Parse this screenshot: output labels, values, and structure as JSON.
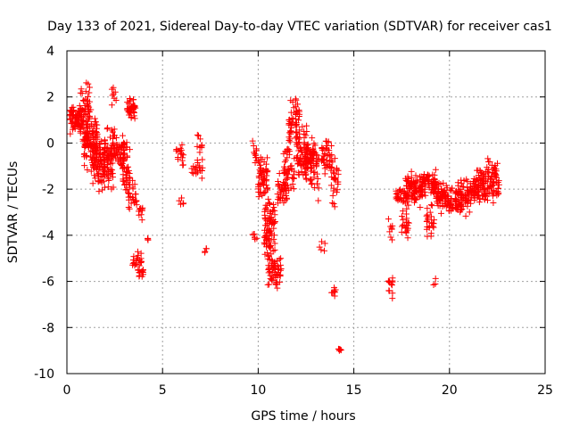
{
  "chart_data": {
    "type": "scatter",
    "title": "Day 133 of 2021, Sidereal Day-to-day VTEC variation (SDTVAR) for receiver cas1",
    "xlabel": "GPS time / hours",
    "ylabel": "SDTVAR / TECUs",
    "xlim": [
      0,
      25
    ],
    "ylim": [
      -10,
      4
    ],
    "xticks": [
      0,
      5,
      10,
      15,
      20,
      25
    ],
    "yticks": [
      -10,
      -8,
      -6,
      -4,
      -2,
      0,
      2,
      4
    ],
    "grid": true,
    "marker": "+",
    "color": "#ff0000",
    "series": [
      {
        "name": "SDTVAR",
        "clusters": [
          {
            "x0": 0.1,
            "x1": 0.9,
            "ymin": 0.2,
            "ymax": 1.8,
            "n": 70
          },
          {
            "x0": 0.7,
            "x1": 1.2,
            "ymin": -0.5,
            "ymax": 3.2,
            "n": 60
          },
          {
            "x0": 0.9,
            "x1": 1.6,
            "ymin": -1.5,
            "ymax": 1.8,
            "n": 90
          },
          {
            "x0": 1.3,
            "x1": 2.0,
            "ymin": -2.3,
            "ymax": 0.6,
            "n": 90
          },
          {
            "x0": 1.9,
            "x1": 2.5,
            "ymin": -2.4,
            "ymax": 1.3,
            "n": 80
          },
          {
            "x0": 2.3,
            "x1": 2.6,
            "ymin": 1.5,
            "ymax": 2.6,
            "n": 8
          },
          {
            "x0": 2.5,
            "x1": 3.0,
            "ymin": -1.2,
            "ymax": 0.5,
            "n": 45
          },
          {
            "x0": 2.9,
            "x1": 3.3,
            "ymin": -2.8,
            "ymax": 0.4,
            "n": 45
          },
          {
            "x0": 3.1,
            "x1": 3.6,
            "ymin": 0.9,
            "ymax": 2.1,
            "n": 40
          },
          {
            "x0": 3.2,
            "x1": 3.7,
            "ymin": -3.3,
            "ymax": -1.5,
            "n": 25
          },
          {
            "x0": 3.4,
            "x1": 3.9,
            "ymin": -5.6,
            "ymax": -4.5,
            "n": 20
          },
          {
            "x0": 3.7,
            "x1": 4.0,
            "ymin": -6.0,
            "ymax": -5.3,
            "n": 12
          },
          {
            "x0": 3.75,
            "x1": 4.0,
            "ymin": -3.5,
            "ymax": -2.6,
            "n": 10
          },
          {
            "x0": 4.2,
            "x1": 4.4,
            "ymin": -4.4,
            "ymax": -4.0,
            "n": 4
          },
          {
            "x0": 5.7,
            "x1": 6.1,
            "ymin": -1.3,
            "ymax": 0.1,
            "n": 16
          },
          {
            "x0": 5.85,
            "x1": 6.1,
            "ymin": -3.1,
            "ymax": -1.9,
            "n": 6
          },
          {
            "x0": 6.5,
            "x1": 6.8,
            "ymin": -1.5,
            "ymax": -0.8,
            "n": 8
          },
          {
            "x0": 6.8,
            "x1": 7.1,
            "ymin": -2.3,
            "ymax": 0.7,
            "n": 22
          },
          {
            "x0": 7.15,
            "x1": 7.3,
            "ymin": -4.9,
            "ymax": -4.4,
            "n": 4
          },
          {
            "x0": 9.7,
            "x1": 9.95,
            "ymin": -1.5,
            "ymax": 0.6,
            "n": 12
          },
          {
            "x0": 9.7,
            "x1": 9.95,
            "ymin": -4.8,
            "ymax": -3.2,
            "n": 6
          },
          {
            "x0": 10.0,
            "x1": 10.5,
            "ymin": -3.0,
            "ymax": -0.2,
            "n": 60
          },
          {
            "x0": 10.3,
            "x1": 10.9,
            "ymin": -5.5,
            "ymax": -1.8,
            "n": 80
          },
          {
            "x0": 10.5,
            "x1": 11.2,
            "ymin": -6.6,
            "ymax": -4.5,
            "n": 60
          },
          {
            "x0": 11.0,
            "x1": 11.5,
            "ymin": -3.2,
            "ymax": -1.0,
            "n": 40
          },
          {
            "x0": 11.3,
            "x1": 11.9,
            "ymin": -2.8,
            "ymax": 0.5,
            "n": 50
          },
          {
            "x0": 11.6,
            "x1": 12.2,
            "ymin": -0.3,
            "ymax": 2.2,
            "n": 50
          },
          {
            "x0": 12.0,
            "x1": 12.6,
            "ymin": -2.2,
            "ymax": 1.5,
            "n": 70
          },
          {
            "x0": 12.4,
            "x1": 12.9,
            "ymin": -1.5,
            "ymax": 0.4,
            "n": 40
          },
          {
            "x0": 12.7,
            "x1": 13.2,
            "ymin": -3.0,
            "ymax": 0.7,
            "n": 40
          },
          {
            "x0": 13.2,
            "x1": 13.5,
            "ymin": -5.2,
            "ymax": -3.8,
            "n": 5
          },
          {
            "x0": 13.3,
            "x1": 13.9,
            "ymin": -1.7,
            "ymax": 0.5,
            "n": 45
          },
          {
            "x0": 13.8,
            "x1": 14.2,
            "ymin": -3.5,
            "ymax": -0.2,
            "n": 25
          },
          {
            "x0": 13.8,
            "x1": 14.1,
            "ymin": -6.9,
            "ymax": -5.8,
            "n": 8
          },
          {
            "x0": 14.1,
            "x1": 14.35,
            "ymin": -9.1,
            "ymax": -8.8,
            "n": 6
          },
          {
            "x0": 16.8,
            "x1": 17.05,
            "ymin": -6.9,
            "ymax": -5.4,
            "n": 14
          },
          {
            "x0": 16.8,
            "x1": 17.05,
            "ymin": -4.5,
            "ymax": -2.8,
            "n": 8
          },
          {
            "x0": 17.2,
            "x1": 17.7,
            "ymin": -2.8,
            "ymax": -1.8,
            "n": 25
          },
          {
            "x0": 17.5,
            "x1": 17.9,
            "ymin": -4.6,
            "ymax": -2.4,
            "n": 25
          },
          {
            "x0": 17.7,
            "x1": 18.6,
            "ymin": -2.9,
            "ymax": -1.0,
            "n": 90
          },
          {
            "x0": 18.5,
            "x1": 19.3,
            "ymin": -2.5,
            "ymax": -1.0,
            "n": 70
          },
          {
            "x0": 18.8,
            "x1": 19.2,
            "ymin": -4.3,
            "ymax": -2.5,
            "n": 25
          },
          {
            "x0": 19.1,
            "x1": 19.3,
            "ymin": -6.4,
            "ymax": -5.5,
            "n": 3
          },
          {
            "x0": 19.3,
            "x1": 20.2,
            "ymin": -3.3,
            "ymax": -1.5,
            "n": 90
          },
          {
            "x0": 20.3,
            "x1": 21.2,
            "ymin": -3.3,
            "ymax": -1.3,
            "n": 90
          },
          {
            "x0": 21.2,
            "x1": 21.9,
            "ymin": -3.0,
            "ymax": -0.6,
            "n": 80
          },
          {
            "x0": 21.9,
            "x1": 22.6,
            "ymin": -2.9,
            "ymax": -0.3,
            "n": 70
          }
        ]
      }
    ]
  }
}
